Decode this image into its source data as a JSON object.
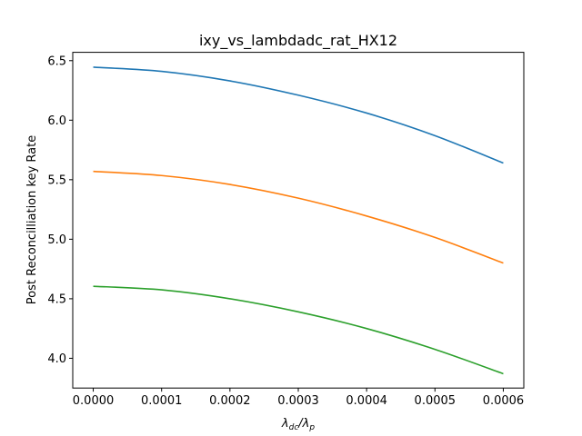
{
  "chart_data": {
    "type": "line",
    "title": "ixy_vs_lambdadc_rat_HX12",
    "xlabel_main": "λ",
    "xlabel_sub1": "dc",
    "xlabel_sep": "/λ",
    "xlabel_sub2": "p",
    "ylabel": "Post Reconcilliation key Rate",
    "xlim": [
      -3e-05,
      0.00063
    ],
    "ylim": [
      3.75,
      6.57
    ],
    "xticks": [
      0.0,
      0.0001,
      0.0002,
      0.0003,
      0.0004,
      0.0005,
      0.0006
    ],
    "xtick_labels": [
      "0.0000",
      "0.0001",
      "0.0002",
      "0.0003",
      "0.0004",
      "0.0005",
      "0.0006"
    ],
    "yticks": [
      4.0,
      4.5,
      5.0,
      5.5,
      6.0,
      6.5
    ],
    "ytick_labels": [
      "4.0",
      "4.5",
      "5.0",
      "5.5",
      "6.0",
      "6.5"
    ],
    "grid": false,
    "series": [
      {
        "color": "#1f77b4",
        "x": [
          0.0,
          0.0001,
          0.0002,
          0.0003,
          0.0004,
          0.0005,
          0.0006
        ],
        "y": [
          6.445,
          6.41,
          6.33,
          6.21,
          6.06,
          5.87,
          5.64
        ]
      },
      {
        "color": "#ff7f0e",
        "x": [
          0.0,
          0.0001,
          0.0002,
          0.0003,
          0.0004,
          0.0005,
          0.0006
        ],
        "y": [
          5.57,
          5.535,
          5.46,
          5.345,
          5.195,
          5.015,
          4.8
        ]
      },
      {
        "color": "#2ca02c",
        "x": [
          0.0,
          0.0001,
          0.0002,
          0.0003,
          0.0004,
          0.0005,
          0.0006
        ],
        "y": [
          4.605,
          4.575,
          4.5,
          4.39,
          4.25,
          4.075,
          3.87
        ]
      }
    ]
  }
}
